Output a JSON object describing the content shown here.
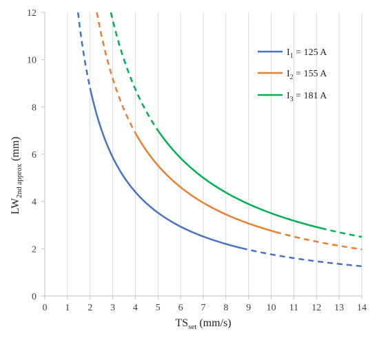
{
  "chart_data": {
    "type": "line",
    "xlabel": {
      "main": "TS",
      "sub": "set",
      "unit": " (mm/s)"
    },
    "ylabel": {
      "main": "LW",
      "sub": "2nd approx",
      "unit": " (mm)"
    },
    "xlim": [
      0,
      14
    ],
    "ylim": [
      0,
      12
    ],
    "x_ticks": [
      0,
      1,
      2,
      3,
      4,
      5,
      6,
      7,
      8,
      9,
      10,
      11,
      12,
      13,
      14
    ],
    "y_ticks": [
      0,
      2,
      4,
      6,
      8,
      10,
      12
    ],
    "grid": {
      "vertical": true,
      "horizontal": false
    },
    "legend_position": "top-right",
    "series": [
      {
        "name": "I1 = 125 A",
        "legend": {
          "base": "I",
          "sub": "1",
          "rest": " = 125 A"
        },
        "color": "#4472C4",
        "k": 17.6,
        "solid_range": [
          2.0,
          8.7
        ],
        "domain": [
          1.0,
          14.0
        ]
      },
      {
        "name": "I2 = 155 A",
        "legend": {
          "base": "I",
          "sub": "2",
          "rest": " = 155 A"
        },
        "color": "#ED7D31",
        "k": 27.6,
        "solid_range": [
          4.0,
          10.2
        ],
        "domain": [
          1.6,
          14.0
        ]
      },
      {
        "name": "I3 = 181 A",
        "legend": {
          "base": "I",
          "sub": "3",
          "rest": " = 181 A"
        },
        "color": "#00B050",
        "k": 35.0,
        "solid_range": [
          5.0,
          12.2
        ],
        "domain": [
          1.8,
          14.0
        ]
      }
    ]
  }
}
